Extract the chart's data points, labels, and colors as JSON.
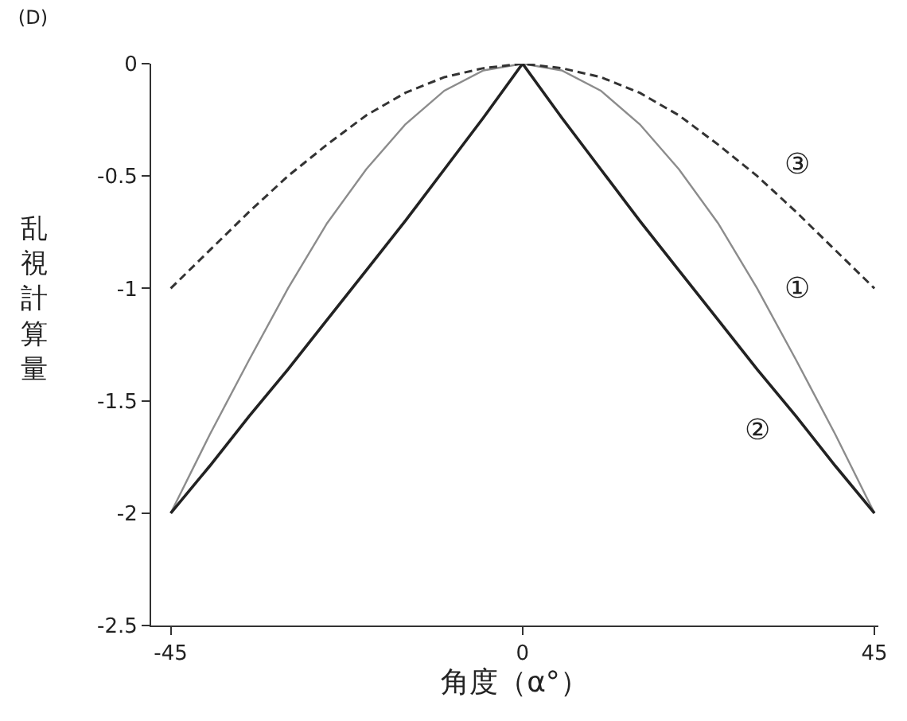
{
  "chart_data": {
    "type": "line",
    "title": "(D)",
    "xlabel": "角度（α°）",
    "ylabel": "乱視計算量",
    "x": [
      -45,
      -40,
      -35,
      -30,
      -25,
      -20,
      -15,
      -10,
      -5,
      0,
      5,
      10,
      15,
      20,
      25,
      30,
      35,
      40,
      45
    ],
    "series": [
      {
        "name": "①",
        "color": "#8c8c8c",
        "line_style": "solid",
        "values": [
          -2.0,
          -1.65,
          -1.32,
          -1.0,
          -0.71,
          -0.47,
          -0.27,
          -0.12,
          -0.03,
          0,
          -0.03,
          -0.12,
          -0.27,
          -0.47,
          -0.71,
          -1.0,
          -1.32,
          -1.65,
          -2.0
        ]
      },
      {
        "name": "②",
        "color": "#222222",
        "line_style": "solid",
        "values": [
          -2.0,
          -1.79,
          -1.57,
          -1.36,
          -1.14,
          -0.92,
          -0.7,
          -0.47,
          -0.24,
          0,
          -0.24,
          -0.47,
          -0.7,
          -0.92,
          -1.14,
          -1.36,
          -1.57,
          -1.79,
          -2.0
        ]
      },
      {
        "name": "③",
        "color": "#333333",
        "line_style": "dashed",
        "values": [
          -1.0,
          -0.83,
          -0.66,
          -0.5,
          -0.36,
          -0.23,
          -0.13,
          -0.06,
          -0.02,
          0,
          -0.02,
          -0.06,
          -0.13,
          -0.23,
          -0.36,
          -0.5,
          -0.66,
          -0.83,
          -1.0
        ]
      }
    ],
    "xlim": [
      -47.5,
      45.5
    ],
    "xticks": [
      -45,
      0,
      45
    ],
    "ylim": [
      -2.5,
      0
    ],
    "yticks": [
      -2.5,
      -2,
      -1.5,
      -1,
      -0.5,
      0
    ],
    "grid": false,
    "legend": false,
    "marker": "none"
  }
}
